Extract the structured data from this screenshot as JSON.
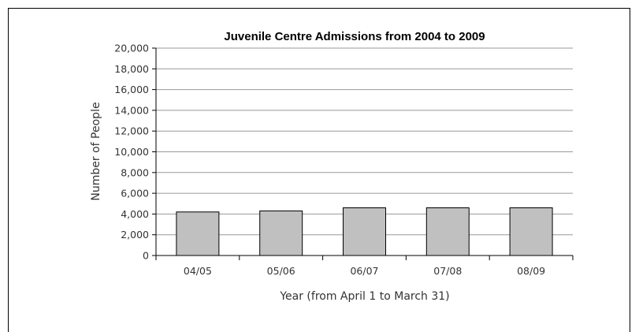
{
  "chart_data": {
    "type": "bar",
    "title": "Juvenile Centre Admissions from 2004 to 2009",
    "xlabel": "Year (from April 1 to March 31)",
    "ylabel": "Number of People",
    "categories": [
      "04/05",
      "05/06",
      "06/07",
      "07/08",
      "08/09"
    ],
    "values": [
      4200,
      4300,
      4600,
      4600,
      4600
    ],
    "ylim": [
      0,
      20000
    ],
    "yticks": [
      0,
      2000,
      4000,
      6000,
      8000,
      10000,
      12000,
      14000,
      16000,
      18000,
      20000
    ],
    "ytick_labels": [
      "0",
      "2,000",
      "4,000",
      "6,000",
      "8,000",
      "10,000",
      "12,000",
      "14,000",
      "16,000",
      "18,000",
      "20,000"
    ],
    "grid": true,
    "bar_color": "#c0c0c0",
    "bar_edge_color": "#000000",
    "grid_color": "#999999"
  }
}
